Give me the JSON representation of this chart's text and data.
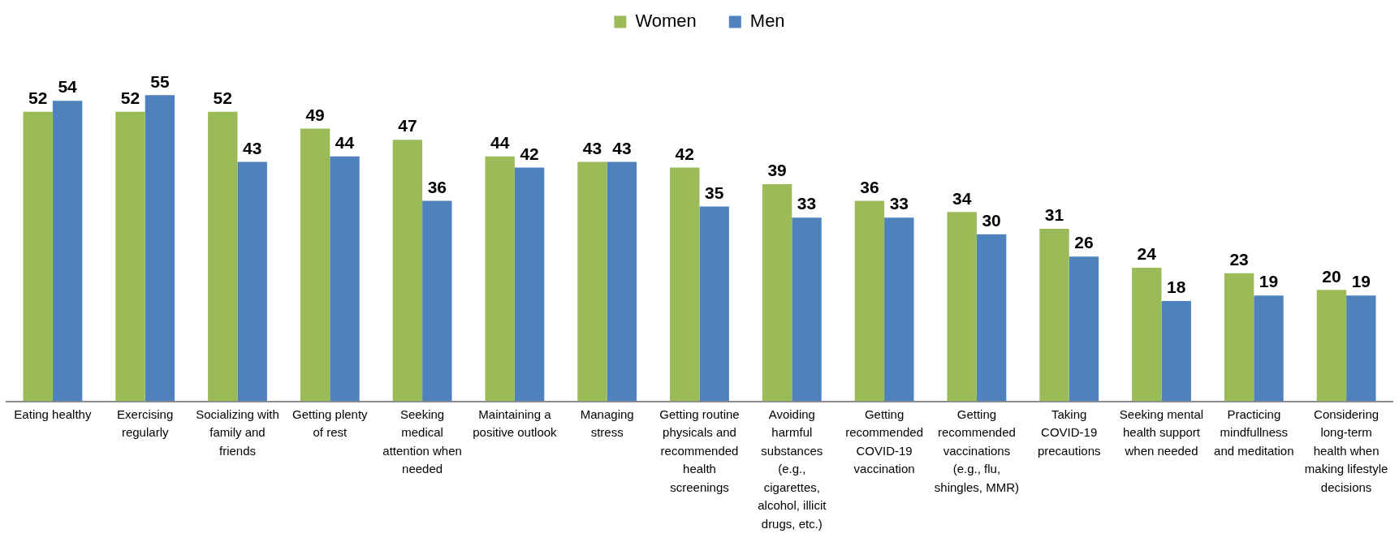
{
  "chart_data": {
    "type": "bar",
    "categories": [
      "Eating healthy",
      "Exercising regularly",
      "Socializing with family and friends",
      "Getting plenty of rest",
      "Seeking medical attention when needed",
      "Maintaining a positive outlook",
      "Managing stress",
      "Getting routine physicals and recommended health screenings",
      "Avoiding harmful substances (e.g., cigarettes, alcohol, illicit drugs, etc.)",
      "Getting recommended COVID-19 vaccination",
      "Getting recommended vaccinations (e.g., flu, shingles, MMR)",
      "Taking COVID-19 precautions",
      "Seeking mental health support when needed",
      "Practicing mindfullness and meditation",
      "Considering long-term health when making lifestyle decisions"
    ],
    "series": [
      {
        "name": "Women",
        "color": "#9bbb59",
        "values": [
          52,
          52,
          52,
          49,
          47,
          44,
          43,
          42,
          39,
          36,
          34,
          31,
          24,
          23,
          20
        ]
      },
      {
        "name": "Men",
        "color": "#4f81bd",
        "values": [
          54,
          55,
          43,
          44,
          36,
          42,
          43,
          35,
          33,
          33,
          30,
          26,
          18,
          19,
          19
        ]
      }
    ],
    "data_labels": true,
    "legend": "top"
  }
}
